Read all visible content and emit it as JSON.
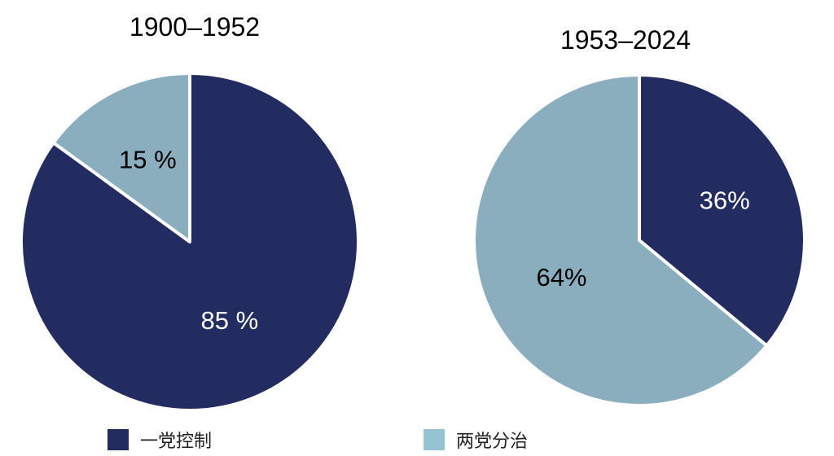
{
  "chart_data": [
    {
      "type": "pie",
      "title": "1900–1952",
      "slices": [
        {
          "label": "一党控制",
          "value": 85,
          "display": "85 %",
          "color": "#232c60",
          "label_color": "#ffffff"
        },
        {
          "label": "两党分治",
          "value": 15,
          "display": "15 %",
          "color": "#8aaebe",
          "label_color": "#000000"
        }
      ],
      "start": "12 o'clock",
      "direction": "clockwise"
    },
    {
      "type": "pie",
      "title": "1953–2024",
      "slices": [
        {
          "label": "一党控制",
          "value": 36,
          "display": "36%",
          "color": "#232c60",
          "label_color": "#ffffff"
        },
        {
          "label": "两党分治",
          "value": 64,
          "display": "64%",
          "color": "#8aaebe",
          "label_color": "#000000"
        }
      ],
      "start": "12 o'clock",
      "direction": "clockwise"
    }
  ],
  "legend": {
    "placement": "bottom",
    "items": [
      {
        "label": "一党控制",
        "color": "#232c60"
      },
      {
        "label": "两党分治",
        "color": "#96c3d2"
      }
    ]
  }
}
